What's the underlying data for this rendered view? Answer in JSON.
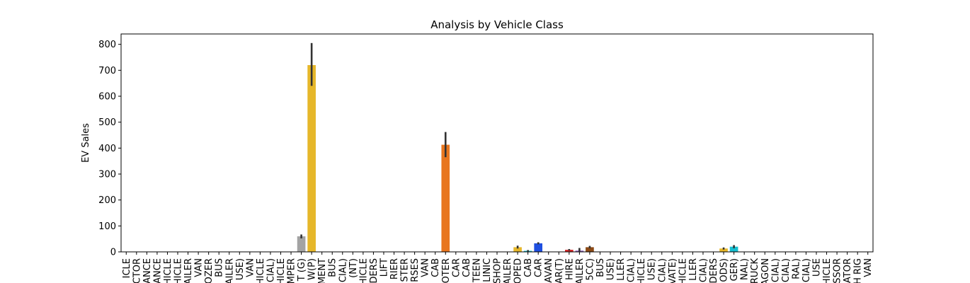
{
  "chart_data": {
    "type": "bar",
    "title": "Analysis by Vehicle Class",
    "xlabel": "",
    "ylabel": "EV Sales",
    "ylim": [
      0,
      840
    ],
    "yticks": [
      0,
      100,
      200,
      300,
      400,
      500,
      600,
      700,
      800
    ],
    "grid": false,
    "legend": "none",
    "categories": [
      "ICLE",
      "CTOR",
      "ANCE",
      "ANCE",
      "HICLE",
      "HICLE",
      "AILER",
      "VAN",
      "OZER",
      "BUS",
      "AILER",
      "USE)",
      "VAN",
      "HICLE",
      "CIAL)",
      "HICLE",
      "MPER",
      "T (G)",
      "W(P)",
      "MENT",
      "BUS",
      "CIAL)",
      "(NT)",
      "HICLE",
      "DERS",
      "LIFT",
      "RIER",
      "STER",
      "RSES",
      "VAN",
      "CAB",
      "OTER",
      "CAR",
      "CAB",
      "TEEN",
      "LINIC",
      "SHOP",
      "AILER",
      "OPED",
      "CAB",
      "CAR",
      "AVAN",
      "AR(T)",
      "HIRE",
      "AILER",
      "5CC)",
      "BUS",
      "USE)",
      "LLER",
      "CIAL)",
      "HICLE",
      "USE)",
      "CIAL)",
      "VATE)",
      "HICLE",
      "LLER",
      "CIAL)",
      "DERS",
      "ODS)",
      "GER)",
      "NAL)",
      "RUCK",
      "AGON",
      "CIAL)",
      "CIAL)",
      "RAL)",
      "CIAL)",
      "USE",
      "HICLE",
      "SSOR",
      "ATOR",
      "H RIG",
      "VAN"
    ],
    "values": [
      0,
      0,
      0,
      0,
      0,
      0,
      0,
      0,
      0,
      1,
      0,
      0,
      0,
      0,
      0,
      0,
      0,
      60,
      720,
      0,
      0,
      0,
      0,
      0,
      0,
      0,
      1,
      0,
      0,
      0,
      0,
      413,
      0,
      0,
      0,
      0,
      0,
      0,
      18,
      4,
      33,
      0,
      0,
      8,
      5,
      18,
      0,
      0,
      0,
      0,
      0,
      0,
      0,
      0,
      0,
      0,
      0,
      0,
      13,
      20,
      0,
      0,
      0,
      0,
      0,
      0,
      0,
      0,
      0,
      0,
      0,
      0,
      0
    ],
    "error_bars": [
      null,
      null,
      null,
      null,
      null,
      null,
      null,
      null,
      null,
      null,
      null,
      null,
      null,
      null,
      null,
      null,
      null,
      [
        52,
        67
      ],
      [
        640,
        805
      ],
      null,
      null,
      null,
      null,
      null,
      null,
      null,
      null,
      null,
      null,
      null,
      null,
      [
        365,
        462
      ],
      null,
      null,
      null,
      null,
      null,
      null,
      [
        13,
        24
      ],
      [
        2,
        7
      ],
      [
        29,
        37
      ],
      null,
      null,
      [
        5,
        11
      ],
      [
        2,
        15
      ],
      [
        14,
        23
      ],
      null,
      null,
      null,
      null,
      null,
      null,
      null,
      null,
      null,
      null,
      null,
      null,
      [
        9,
        17
      ],
      [
        14,
        26
      ],
      null,
      null,
      null,
      null,
      null,
      null,
      null,
      null,
      null,
      null,
      null,
      null,
      null
    ],
    "colors": {
      "17": "#a3a3a3",
      "18": "#e6b72a",
      "31": "#e8761f",
      "38": "#e6b72a",
      "39": "#17becf",
      "40": "#1f4fe0",
      "43": "#d62728",
      "44": "#9467bd",
      "45": "#8c4a16",
      "58": "#e6b72a",
      "59": "#17becf",
      "9": "#17becf",
      "26": "#d62728"
    },
    "default_color": "#1f77b4",
    "errorbar_color": "#333333"
  }
}
